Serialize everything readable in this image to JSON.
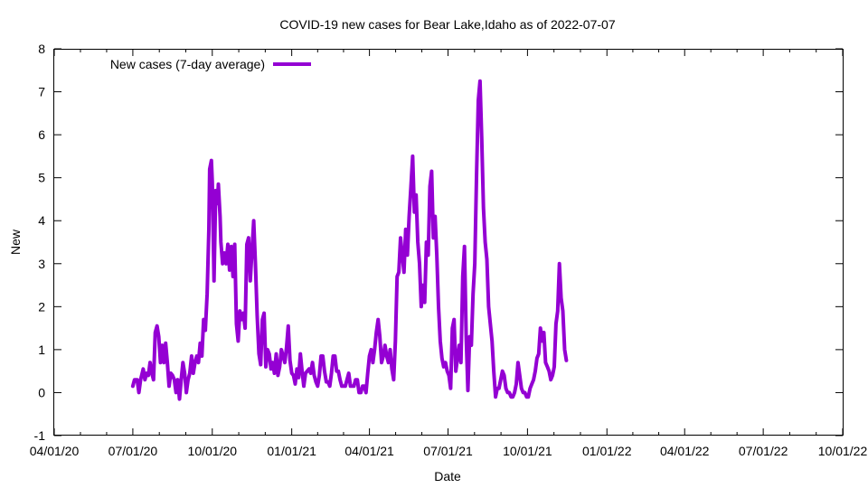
{
  "colors": {
    "series": "#9400d3",
    "axis": "#000000",
    "background": "#ffffff"
  },
  "chart_data": {
    "type": "line",
    "title": "COVID-19 new cases for Bear Lake,Idaho as of 2022-07-07",
    "xlabel": "Date",
    "ylabel": "New",
    "ylim": [
      -1,
      8
    ],
    "yticks": [
      -1,
      0,
      1,
      2,
      3,
      4,
      5,
      6,
      7,
      8
    ],
    "x_axis_unit": "days since 04/01/20",
    "xlim": [
      0,
      913
    ],
    "xticks": [
      {
        "label": "04/01/20",
        "day": 0
      },
      {
        "label": "07/01/20",
        "day": 91
      },
      {
        "label": "10/01/20",
        "day": 183
      },
      {
        "label": "01/01/21",
        "day": 275
      },
      {
        "label": "04/01/21",
        "day": 365
      },
      {
        "label": "07/01/21",
        "day": 456
      },
      {
        "label": "10/01/21",
        "day": 548
      },
      {
        "label": "01/01/22",
        "day": 640
      },
      {
        "label": "04/01/22",
        "day": 730
      },
      {
        "label": "07/01/22",
        "day": 821
      },
      {
        "label": "10/01/22",
        "day": 913
      }
    ],
    "legend": {
      "position": "top-left",
      "entries": [
        "New cases (7-day average)"
      ]
    },
    "series": [
      {
        "name": "New cases (7-day average)",
        "points": [
          [
            91,
            0.15
          ],
          [
            93,
            0.3
          ],
          [
            96,
            0.3
          ],
          [
            98,
            0.0
          ],
          [
            100,
            0.3
          ],
          [
            103,
            0.55
          ],
          [
            105,
            0.3
          ],
          [
            107,
            0.45
          ],
          [
            109,
            0.4
          ],
          [
            111,
            0.7
          ],
          [
            113,
            0.45
          ],
          [
            115,
            0.3
          ],
          [
            117,
            1.4
          ],
          [
            119,
            1.55
          ],
          [
            121,
            1.3
          ],
          [
            123,
            0.7
          ],
          [
            125,
            1.1
          ],
          [
            127,
            0.7
          ],
          [
            129,
            1.15
          ],
          [
            131,
            0.7
          ],
          [
            133,
            0.15
          ],
          [
            135,
            0.45
          ],
          [
            137,
            0.4
          ],
          [
            139,
            0.3
          ],
          [
            141,
            0.0
          ],
          [
            143,
            0.3
          ],
          [
            145,
            -0.15
          ],
          [
            147,
            0.3
          ],
          [
            149,
            0.7
          ],
          [
            151,
            0.45
          ],
          [
            153,
            0.0
          ],
          [
            155,
            0.3
          ],
          [
            157,
            0.45
          ],
          [
            159,
            0.85
          ],
          [
            161,
            0.45
          ],
          [
            163,
            0.7
          ],
          [
            165,
            0.85
          ],
          [
            167,
            0.7
          ],
          [
            169,
            1.15
          ],
          [
            171,
            0.85
          ],
          [
            173,
            1.7
          ],
          [
            175,
            1.45
          ],
          [
            177,
            2.3
          ],
          [
            179,
            3.8
          ],
          [
            180,
            5.2
          ],
          [
            182,
            5.4
          ],
          [
            183,
            4.9
          ],
          [
            185,
            2.6
          ],
          [
            187,
            4.7
          ],
          [
            189,
            4.4
          ],
          [
            190,
            4.85
          ],
          [
            192,
            4.1
          ],
          [
            193,
            3.5
          ],
          [
            195,
            3.0
          ],
          [
            197,
            3.25
          ],
          [
            199,
            3.0
          ],
          [
            201,
            3.45
          ],
          [
            203,
            2.85
          ],
          [
            205,
            3.4
          ],
          [
            207,
            2.7
          ],
          [
            209,
            3.45
          ],
          [
            211,
            1.6
          ],
          [
            213,
            1.2
          ],
          [
            215,
            1.9
          ],
          [
            217,
            1.7
          ],
          [
            219,
            1.85
          ],
          [
            221,
            1.5
          ],
          [
            223,
            3.45
          ],
          [
            225,
            3.6
          ],
          [
            227,
            2.6
          ],
          [
            229,
            3.3
          ],
          [
            231,
            4.0
          ],
          [
            233,
            3.0
          ],
          [
            235,
            1.8
          ],
          [
            237,
            0.9
          ],
          [
            239,
            0.65
          ],
          [
            241,
            1.7
          ],
          [
            243,
            1.85
          ],
          [
            245,
            0.6
          ],
          [
            247,
            1.0
          ],
          [
            249,
            0.9
          ],
          [
            251,
            0.55
          ],
          [
            253,
            0.7
          ],
          [
            255,
            0.45
          ],
          [
            257,
            0.9
          ],
          [
            259,
            0.4
          ],
          [
            261,
            0.6
          ],
          [
            263,
            1.0
          ],
          [
            265,
            0.85
          ],
          [
            267,
            0.7
          ],
          [
            269,
            1.05
          ],
          [
            271,
            1.55
          ],
          [
            273,
            0.75
          ],
          [
            275,
            0.45
          ],
          [
            277,
            0.4
          ],
          [
            279,
            0.2
          ],
          [
            281,
            0.55
          ],
          [
            283,
            0.35
          ],
          [
            285,
            0.9
          ],
          [
            287,
            0.5
          ],
          [
            289,
            0.15
          ],
          [
            291,
            0.45
          ],
          [
            293,
            0.5
          ],
          [
            295,
            0.55
          ],
          [
            297,
            0.45
          ],
          [
            299,
            0.7
          ],
          [
            301,
            0.4
          ],
          [
            303,
            0.25
          ],
          [
            305,
            0.15
          ],
          [
            307,
            0.4
          ],
          [
            309,
            0.85
          ],
          [
            311,
            0.85
          ],
          [
            313,
            0.5
          ],
          [
            315,
            0.25
          ],
          [
            317,
            0.25
          ],
          [
            319,
            0.15
          ],
          [
            321,
            0.45
          ],
          [
            323,
            0.85
          ],
          [
            325,
            0.85
          ],
          [
            327,
            0.5
          ],
          [
            329,
            0.5
          ],
          [
            331,
            0.3
          ],
          [
            333,
            0.15
          ],
          [
            335,
            0.15
          ],
          [
            337,
            0.15
          ],
          [
            339,
            0.3
          ],
          [
            341,
            0.45
          ],
          [
            343,
            0.15
          ],
          [
            345,
            0.15
          ],
          [
            347,
            0.15
          ],
          [
            349,
            0.3
          ],
          [
            351,
            0.3
          ],
          [
            353,
            0.0
          ],
          [
            355,
            0.0
          ],
          [
            357,
            0.15
          ],
          [
            359,
            0.15
          ],
          [
            361,
            0.0
          ],
          [
            363,
            0.45
          ],
          [
            365,
            0.85
          ],
          [
            367,
            1.0
          ],
          [
            369,
            0.7
          ],
          [
            371,
            1.0
          ],
          [
            373,
            1.4
          ],
          [
            375,
            1.7
          ],
          [
            377,
            1.3
          ],
          [
            379,
            0.7
          ],
          [
            381,
            0.85
          ],
          [
            383,
            1.1
          ],
          [
            385,
            0.85
          ],
          [
            387,
            0.7
          ],
          [
            389,
            1.0
          ],
          [
            391,
            0.55
          ],
          [
            393,
            0.3
          ],
          [
            395,
            1.2
          ],
          [
            397,
            2.7
          ],
          [
            399,
            2.8
          ],
          [
            401,
            3.6
          ],
          [
            403,
            3.2
          ],
          [
            405,
            2.8
          ],
          [
            407,
            3.8
          ],
          [
            409,
            3.2
          ],
          [
            411,
            4.1
          ],
          [
            413,
            4.8
          ],
          [
            415,
            5.5
          ],
          [
            417,
            4.2
          ],
          [
            419,
            4.6
          ],
          [
            421,
            3.5
          ],
          [
            423,
            3.0
          ],
          [
            425,
            2.0
          ],
          [
            427,
            2.5
          ],
          [
            429,
            2.1
          ],
          [
            431,
            3.5
          ],
          [
            433,
            3.2
          ],
          [
            435,
            4.8
          ],
          [
            437,
            5.15
          ],
          [
            439,
            3.6
          ],
          [
            441,
            4.1
          ],
          [
            443,
            3.2
          ],
          [
            445,
            2.0
          ],
          [
            447,
            1.2
          ],
          [
            449,
            0.8
          ],
          [
            451,
            0.6
          ],
          [
            453,
            0.7
          ],
          [
            455,
            0.5
          ],
          [
            457,
            0.4
          ],
          [
            459,
            0.1
          ],
          [
            461,
            1.5
          ],
          [
            463,
            1.7
          ],
          [
            465,
            0.5
          ],
          [
            467,
            0.8
          ],
          [
            469,
            1.1
          ],
          [
            471,
            0.7
          ],
          [
            473,
            2.7
          ],
          [
            475,
            3.4
          ],
          [
            477,
            1.3
          ],
          [
            479,
            0.05
          ],
          [
            481,
            1.3
          ],
          [
            483,
            1.1
          ],
          [
            485,
            2.3
          ],
          [
            487,
            3.0
          ],
          [
            489,
            5.0
          ],
          [
            491,
            6.8
          ],
          [
            493,
            7.25
          ],
          [
            495,
            5.9
          ],
          [
            497,
            4.3
          ],
          [
            499,
            3.5
          ],
          [
            501,
            3.1
          ],
          [
            503,
            2.0
          ],
          [
            505,
            1.6
          ],
          [
            507,
            1.2
          ],
          [
            509,
            0.5
          ],
          [
            511,
            -0.1
          ],
          [
            513,
            0.1
          ],
          [
            515,
            0.1
          ],
          [
            517,
            0.3
          ],
          [
            519,
            0.5
          ],
          [
            521,
            0.4
          ],
          [
            523,
            0.1
          ],
          [
            525,
            0.0
          ],
          [
            527,
            0.0
          ],
          [
            529,
            -0.1
          ],
          [
            531,
            -0.1
          ],
          [
            533,
            0.0
          ],
          [
            535,
            0.2
          ],
          [
            537,
            0.7
          ],
          [
            539,
            0.4
          ],
          [
            541,
            0.1
          ],
          [
            543,
            0.0
          ],
          [
            545,
            0.0
          ],
          [
            547,
            -0.1
          ],
          [
            549,
            -0.1
          ],
          [
            551,
            0.1
          ],
          [
            553,
            0.2
          ],
          [
            555,
            0.3
          ],
          [
            557,
            0.5
          ],
          [
            559,
            0.8
          ],
          [
            561,
            0.9
          ],
          [
            563,
            1.5
          ],
          [
            565,
            1.2
          ],
          [
            567,
            1.4
          ],
          [
            569,
            0.7
          ],
          [
            571,
            0.6
          ],
          [
            573,
            0.5
          ],
          [
            575,
            0.3
          ],
          [
            577,
            0.4
          ],
          [
            579,
            0.6
          ],
          [
            581,
            1.6
          ],
          [
            583,
            1.9
          ],
          [
            585,
            3.0
          ],
          [
            587,
            2.2
          ],
          [
            589,
            1.9
          ],
          [
            591,
            1.0
          ],
          [
            593,
            0.75
          ]
        ]
      }
    ]
  }
}
